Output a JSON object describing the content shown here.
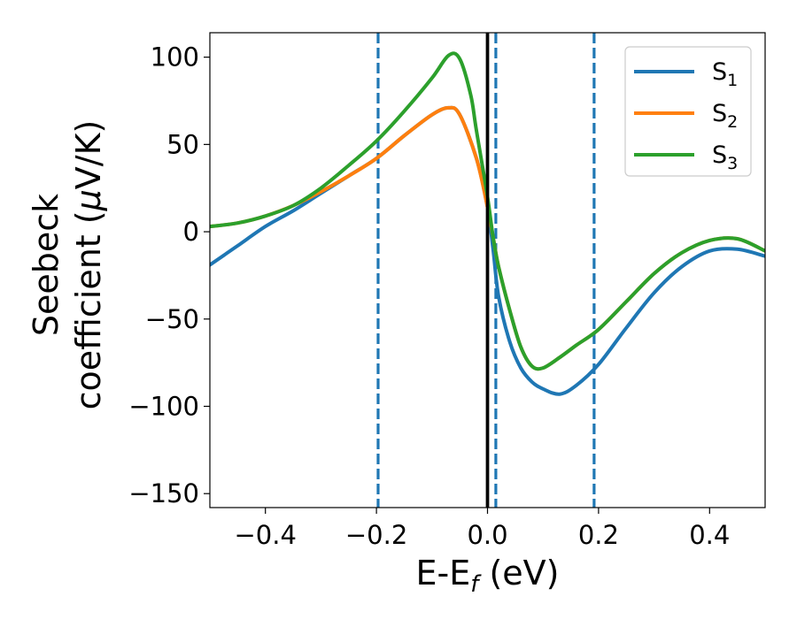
{
  "chart_data": {
    "type": "line",
    "xlabel": {
      "main": "E-E",
      "sub": "f",
      "rest": " (eV)"
    },
    "ylabel": {
      "line1": "Seebeck",
      "line2_pre": "coefficient  (",
      "mu": "μ",
      "line2_post": "V/K)"
    },
    "xlim": [
      -0.5,
      0.5
    ],
    "ylim": [
      -158,
      114
    ],
    "xticks": [
      -0.4,
      -0.2,
      0.0,
      0.2,
      0.4
    ],
    "xtick_labels": [
      "−0.4",
      "−0.2",
      "0.0",
      "0.2",
      "0.4"
    ],
    "yticks": [
      100,
      50,
      0,
      -50,
      -100,
      -150
    ],
    "ytick_labels": [
      "100",
      "50",
      "0",
      "−50",
      "−100",
      "−150"
    ],
    "grid": false,
    "legend_position": "top-right",
    "vlines": [
      {
        "x": -0.197,
        "style": "dashed",
        "color": "#1f77b4"
      },
      {
        "x": 0.015,
        "style": "dashed",
        "color": "#1f77b4"
      },
      {
        "x": 0.192,
        "style": "dashed",
        "color": "#1f77b4"
      },
      {
        "x": 0.0,
        "style": "solid",
        "color": "#000000"
      }
    ],
    "series": [
      {
        "name": "S",
        "sub": "1",
        "color": "#1f77b4",
        "x": [
          -0.5,
          -0.45,
          -0.4,
          -0.35,
          -0.3,
          -0.25,
          -0.2,
          -0.15,
          -0.1,
          -0.07,
          -0.05,
          -0.02,
          0.0,
          0.01,
          0.02,
          0.04,
          0.06,
          0.08,
          0.1,
          0.13,
          0.16,
          0.2,
          0.25,
          0.3,
          0.35,
          0.4,
          0.45,
          0.5
        ],
        "y": [
          -19,
          -8,
          3,
          12,
          22,
          32,
          42,
          55,
          67,
          71,
          67,
          42,
          14,
          -10,
          -37,
          -63,
          -78,
          -86,
          -90,
          -93,
          -88,
          -76,
          -55,
          -35,
          -20,
          -11,
          -10,
          -14
        ]
      },
      {
        "name": "S",
        "sub": "2",
        "color": "#ff7f0e",
        "x": [
          -0.5,
          -0.45,
          -0.4,
          -0.35,
          -0.3,
          -0.25,
          -0.2,
          -0.15,
          -0.1,
          -0.07,
          -0.05,
          -0.02,
          0.0,
          0.01,
          0.02,
          0.04,
          0.06,
          0.08,
          0.1,
          0.13,
          0.16,
          0.2,
          0.25,
          0.3,
          0.35,
          0.4,
          0.45,
          0.5
        ],
        "y": [
          3,
          5,
          9,
          15,
          23,
          32,
          42,
          55,
          67,
          71,
          67,
          42,
          14,
          -3,
          -20,
          -45,
          -66,
          -77,
          -78,
          -72,
          -65,
          -56,
          -40,
          -24,
          -12,
          -5,
          -4,
          -11
        ]
      },
      {
        "name": "S",
        "sub": "3",
        "color": "#2ca02c",
        "x": [
          -0.5,
          -0.45,
          -0.4,
          -0.35,
          -0.3,
          -0.25,
          -0.2,
          -0.15,
          -0.1,
          -0.07,
          -0.05,
          -0.03,
          -0.02,
          0.0,
          0.01,
          0.02,
          0.04,
          0.06,
          0.08,
          0.1,
          0.13,
          0.16,
          0.2,
          0.25,
          0.3,
          0.35,
          0.4,
          0.45,
          0.5
        ],
        "y": [
          3,
          5,
          9,
          15,
          25,
          38,
          52,
          69,
          88,
          101,
          99,
          78,
          58,
          20,
          -3,
          -20,
          -45,
          -66,
          -77,
          -78,
          -72,
          -65,
          -56,
          -40,
          -24,
          -12,
          -5,
          -4,
          -11
        ]
      }
    ]
  }
}
